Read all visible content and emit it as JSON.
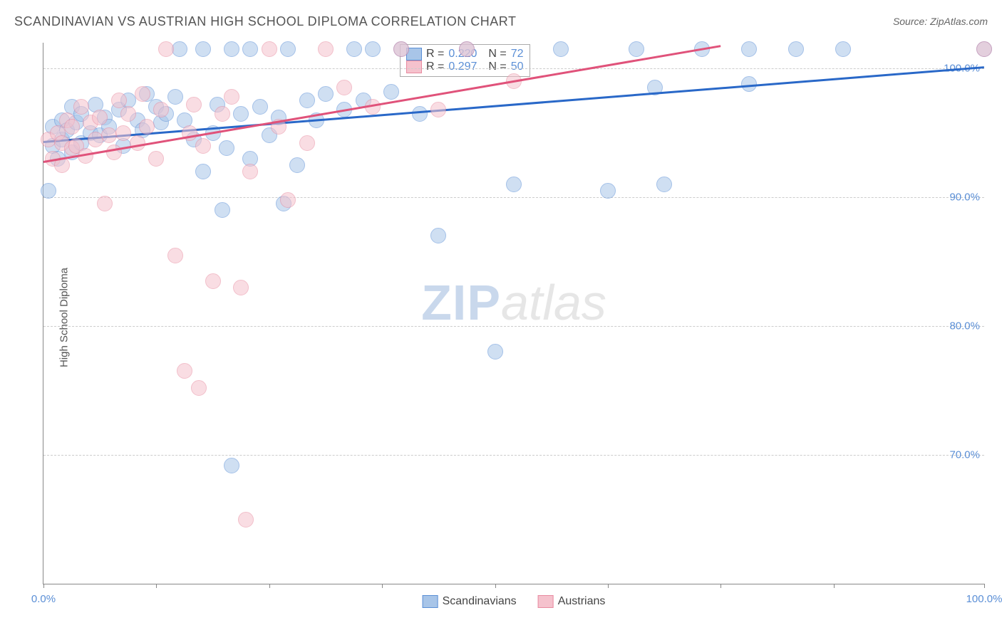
{
  "title": "SCANDINAVIAN VS AUSTRIAN HIGH SCHOOL DIPLOMA CORRELATION CHART",
  "source": "Source: ZipAtlas.com",
  "ylabel": "High School Diploma",
  "watermark": {
    "zip": "ZIP",
    "atlas": "atlas"
  },
  "chart": {
    "type": "scatter",
    "background_color": "#ffffff",
    "grid_color": "#cccccc",
    "axis_color": "#888888",
    "label_color": "#5b8fd6",
    "title_color": "#555555",
    "title_fontsize": 18,
    "label_fontsize": 15,
    "xlim": [
      0,
      100
    ],
    "ylim": [
      60,
      102
    ],
    "yticks": [
      70,
      80,
      90,
      100
    ],
    "ytick_labels": [
      "70.0%",
      "80.0%",
      "90.0%",
      "100.0%"
    ],
    "xticks": [
      0,
      12,
      24,
      36,
      48,
      60,
      72,
      84,
      100
    ],
    "xtick_labels_shown": {
      "0": "0.0%",
      "100": "100.0%"
    },
    "marker_radius": 10,
    "marker_opacity": 0.55,
    "series": [
      {
        "name": "Scandinavians",
        "fill_color": "#a8c5e8",
        "stroke_color": "#5b8fd6",
        "trend_color": "#2968c8",
        "R": "0.220",
        "N": "72",
        "trend": {
          "x1": 0,
          "y1": 94.4,
          "x2": 100,
          "y2": 100.2
        },
        "points": [
          [
            0.5,
            90.5
          ],
          [
            1,
            94
          ],
          [
            1,
            95.5
          ],
          [
            1.5,
            93
          ],
          [
            2,
            96
          ],
          [
            2,
            94.5
          ],
          [
            2.5,
            95.2
          ],
          [
            3,
            93.5
          ],
          [
            3,
            97
          ],
          [
            3.5,
            95.8
          ],
          [
            4,
            96.5
          ],
          [
            4,
            94.2
          ],
          [
            5,
            95
          ],
          [
            5.5,
            97.2
          ],
          [
            6,
            94.8
          ],
          [
            6.5,
            96.2
          ],
          [
            7,
            95.5
          ],
          [
            8,
            96.8
          ],
          [
            8.5,
            94
          ],
          [
            9,
            97.5
          ],
          [
            10,
            96
          ],
          [
            10.5,
            95.2
          ],
          [
            11,
            98
          ],
          [
            12,
            97
          ],
          [
            12.5,
            95.8
          ],
          [
            13,
            96.5
          ],
          [
            14,
            97.8
          ],
          [
            14.5,
            101.5
          ],
          [
            15,
            96
          ],
          [
            16,
            94.5
          ],
          [
            17,
            92
          ],
          [
            17,
            101.5
          ],
          [
            18,
            95
          ],
          [
            18.5,
            97.2
          ],
          [
            19,
            89
          ],
          [
            19.5,
            93.8
          ],
          [
            20,
            69.2
          ],
          [
            20,
            101.5
          ],
          [
            21,
            96.5
          ],
          [
            22,
            93
          ],
          [
            22,
            101.5
          ],
          [
            23,
            97
          ],
          [
            24,
            94.8
          ],
          [
            25,
            96.2
          ],
          [
            25.5,
            89.5
          ],
          [
            26,
            101.5
          ],
          [
            27,
            92.5
          ],
          [
            28,
            97.5
          ],
          [
            29,
            96
          ],
          [
            30,
            98
          ],
          [
            32,
            96.8
          ],
          [
            33,
            101.5
          ],
          [
            34,
            97.5
          ],
          [
            35,
            101.5
          ],
          [
            37,
            98.2
          ],
          [
            38,
            101.5
          ],
          [
            40,
            96.5
          ],
          [
            42,
            87
          ],
          [
            45,
            101.5
          ],
          [
            48,
            78
          ],
          [
            50,
            91
          ],
          [
            55,
            101.5
          ],
          [
            60,
            90.5
          ],
          [
            63,
            101.5
          ],
          [
            65,
            98.5
          ],
          [
            66,
            91
          ],
          [
            70,
            101.5
          ],
          [
            75,
            101.5
          ],
          [
            75,
            98.8
          ],
          [
            80,
            101.5
          ],
          [
            85,
            101.5
          ],
          [
            100,
            101.5
          ]
        ]
      },
      {
        "name": "Austrians",
        "fill_color": "#f5c2cd",
        "stroke_color": "#e88ba0",
        "trend_color": "#e0527a",
        "R": "0.297",
        "N": "50",
        "trend": {
          "x1": 0,
          "y1": 92.8,
          "x2": 72,
          "y2": 101.8
        },
        "points": [
          [
            0.5,
            94.5
          ],
          [
            1,
            93
          ],
          [
            1.5,
            95
          ],
          [
            2,
            94.2
          ],
          [
            2,
            92.5
          ],
          [
            2.5,
            96
          ],
          [
            3,
            93.8
          ],
          [
            3,
            95.5
          ],
          [
            3.5,
            94
          ],
          [
            4,
            97
          ],
          [
            4.5,
            93.2
          ],
          [
            5,
            95.8
          ],
          [
            5.5,
            94.5
          ],
          [
            6,
            96.2
          ],
          [
            6.5,
            89.5
          ],
          [
            7,
            94.8
          ],
          [
            7.5,
            93.5
          ],
          [
            8,
            97.5
          ],
          [
            8.5,
            95
          ],
          [
            9,
            96.5
          ],
          [
            10,
            94.2
          ],
          [
            10.5,
            98
          ],
          [
            11,
            95.5
          ],
          [
            12,
            93
          ],
          [
            12.5,
            96.8
          ],
          [
            13,
            101.5
          ],
          [
            14,
            85.5
          ],
          [
            15,
            76.5
          ],
          [
            15.5,
            95
          ],
          [
            16,
            97.2
          ],
          [
            16.5,
            75.2
          ],
          [
            17,
            94
          ],
          [
            18,
            83.5
          ],
          [
            19,
            96.5
          ],
          [
            20,
            97.8
          ],
          [
            21,
            83
          ],
          [
            21.5,
            65
          ],
          [
            22,
            92
          ],
          [
            24,
            101.5
          ],
          [
            25,
            95.5
          ],
          [
            26,
            89.8
          ],
          [
            28,
            94.2
          ],
          [
            30,
            101.5
          ],
          [
            32,
            98.5
          ],
          [
            35,
            97
          ],
          [
            38,
            101.5
          ],
          [
            42,
            96.8
          ],
          [
            45,
            101.5
          ],
          [
            50,
            99
          ],
          [
            100,
            101.5
          ]
        ]
      }
    ]
  },
  "legend_box": {
    "rows": [
      {
        "swatch_fill": "#a8c5e8",
        "swatch_border": "#5b8fd6",
        "r_label": "R =",
        "r_val": "0.220",
        "n_label": "N =",
        "n_val": "72"
      },
      {
        "swatch_fill": "#f5c2cd",
        "swatch_border": "#e88ba0",
        "r_label": "R =",
        "r_val": "0.297",
        "n_label": "N =",
        "n_val": "50"
      }
    ]
  },
  "bottom_legend": [
    {
      "fill": "#a8c5e8",
      "border": "#5b8fd6",
      "label": "Scandinavians"
    },
    {
      "fill": "#f5c2cd",
      "border": "#e88ba0",
      "label": "Austrians"
    }
  ]
}
